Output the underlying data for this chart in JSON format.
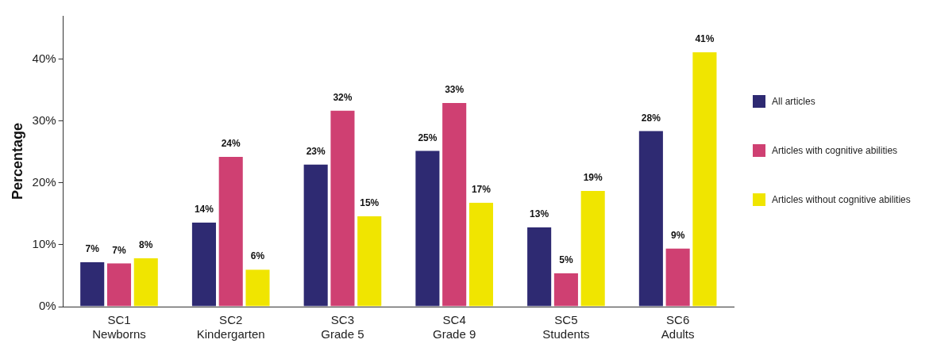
{
  "chart_data": {
    "type": "bar",
    "ylabel": "Percentage",
    "categories": [
      "SC1\nNewborns",
      "SC2\nKindergarten",
      "SC3\nGrade 5",
      "SC4\nGrade 9",
      "SC5\nStudents",
      "SC6\nAdults"
    ],
    "series": [
      {
        "name": "All articles",
        "color": "#2e2a72",
        "values": [
          7.2,
          13.6,
          23.0,
          25.2,
          12.8,
          28.4
        ],
        "value_labels": [
          "7%",
          "14%",
          "23%",
          "25%",
          "13%",
          "28%"
        ]
      },
      {
        "name": "Articles with cognitive abilities",
        "color": "#cf4072",
        "values": [
          7.0,
          24.2,
          31.7,
          32.9,
          5.4,
          9.4
        ],
        "value_labels": [
          "7%",
          "24%",
          "32%",
          "33%",
          "5%",
          "9%"
        ]
      },
      {
        "name": "Articles without cognitive abilities",
        "color": "#f0e500",
        "values": [
          7.8,
          6.0,
          14.6,
          16.8,
          18.7,
          41.1
        ],
        "value_labels": [
          "8%",
          "6%",
          "15%",
          "17%",
          "19%",
          "41%"
        ]
      }
    ],
    "ylim": [
      0,
      47
    ],
    "yticks": [
      {
        "value": 0,
        "label": "0%"
      },
      {
        "value": 10,
        "label": "10%"
      },
      {
        "value": 20,
        "label": "20%"
      },
      {
        "value": 30,
        "label": "30%"
      },
      {
        "value": 40,
        "label": "40%"
      }
    ],
    "grid": false,
    "legend": "right"
  }
}
